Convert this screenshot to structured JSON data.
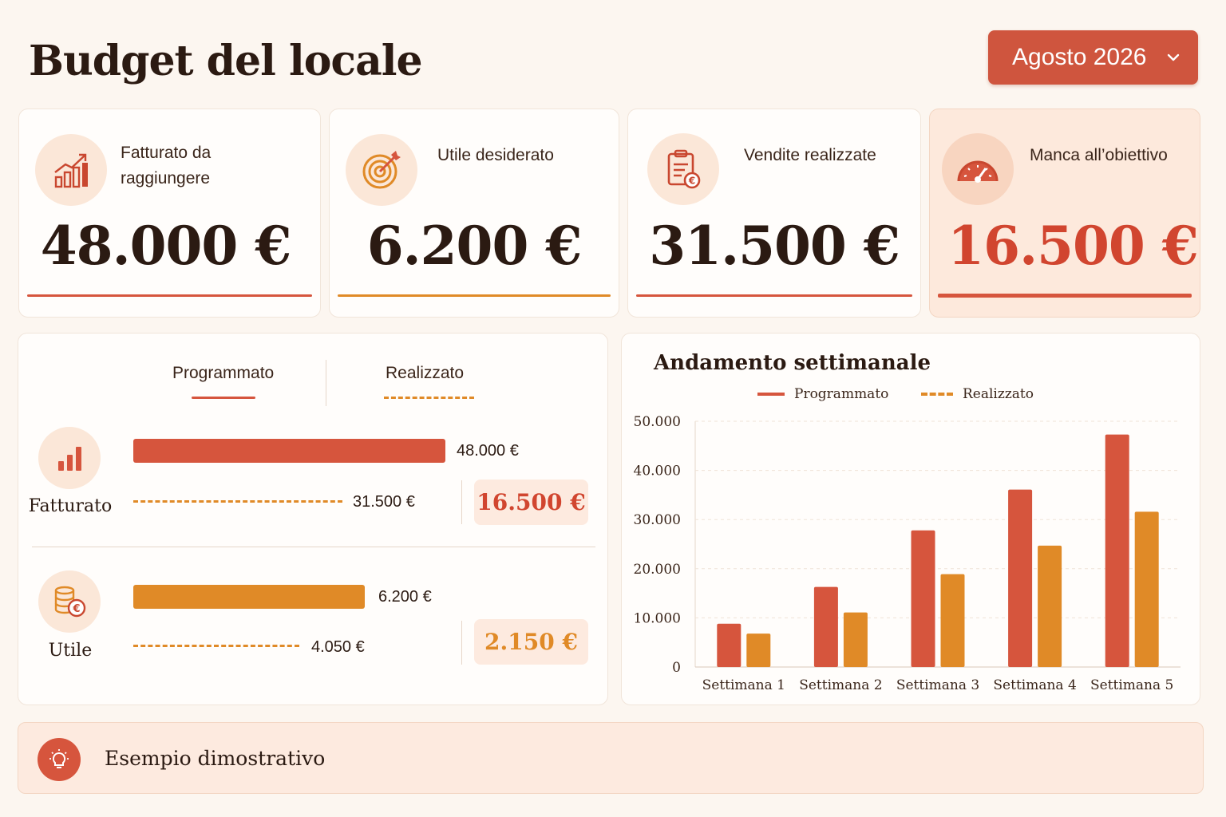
{
  "header": {
    "title": "Budget del locale",
    "month_selector": "Agosto 2026"
  },
  "kpis": [
    {
      "label": "Fatturato da raggiungere",
      "value": "48.000 €",
      "icon": "chart-trend-icon"
    },
    {
      "label": "Utile desiderato",
      "value": "6.200 €",
      "icon": "target-icon"
    },
    {
      "label": "Vendite realizzate",
      "value": "31.500 €",
      "icon": "clipboard-euro-icon"
    },
    {
      "label": "Manca all’obiettivo",
      "value": "16.500 €",
      "icon": "gauge-icon"
    }
  ],
  "comparison": {
    "tabs": {
      "planned": "Programmato",
      "actual": "Realizzato"
    },
    "rows": [
      {
        "label": "Fatturato",
        "planned": "48.000 €",
        "actual": "31.500 €",
        "remaining": "16.500 €",
        "planned_value": 48000,
        "actual_value": 31500,
        "icon": "bar-chart-icon"
      },
      {
        "label": "Utile",
        "planned": "6.200 €",
        "actual": "4.050 €",
        "remaining": "2.150 €",
        "planned_value": 6200,
        "actual_value": 4050,
        "icon": "coins-euro-icon"
      }
    ]
  },
  "chart_data": {
    "type": "bar",
    "title": "Andamento settimanale",
    "categories": [
      "Settimana 1",
      "Settimana 2",
      "Settimana 3",
      "Settimana 4",
      "Settimana 5"
    ],
    "series": [
      {
        "name": "Programmato",
        "values": [
          8800,
          16300,
          27800,
          36100,
          47300
        ]
      },
      {
        "name": "Realizzato",
        "values": [
          6800,
          11100,
          18900,
          24700,
          31600
        ]
      }
    ],
    "yticks": [
      "0",
      "10.000",
      "20.000",
      "30.000",
      "40.000",
      "50.000"
    ],
    "ylim": [
      0,
      50000
    ],
    "legend": "top",
    "grid": true
  },
  "colors": {
    "accent": "#cf553e",
    "planned": "#d6553d",
    "actual": "#e08a27",
    "background": "#fcf6f0"
  },
  "footer": {
    "text": "Esempio dimostrativo",
    "icon": "lightbulb-icon"
  }
}
